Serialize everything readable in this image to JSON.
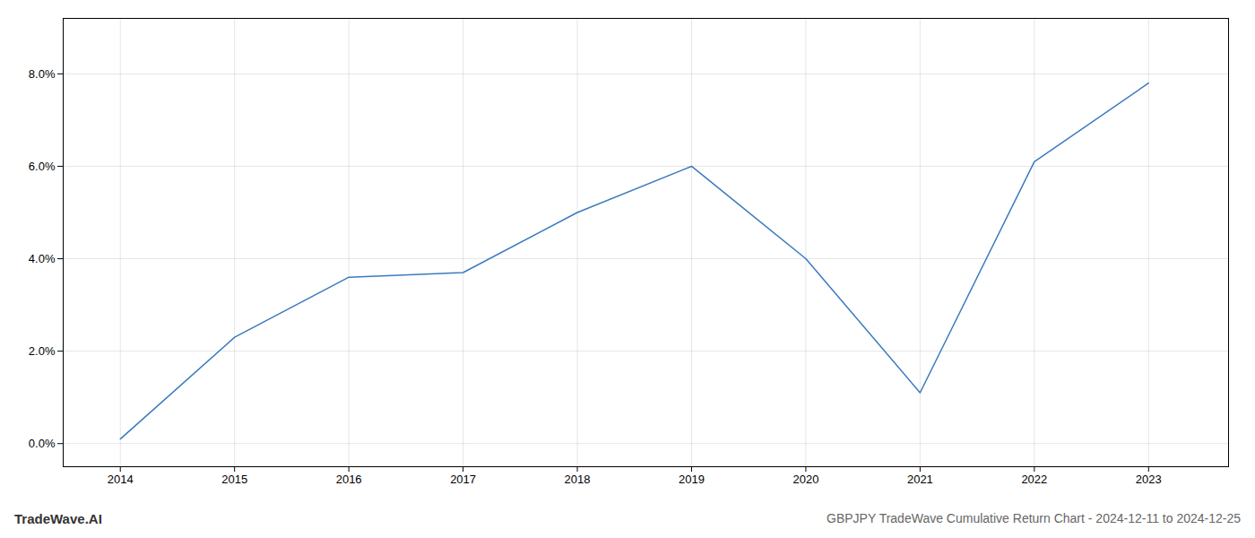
{
  "chart_data": {
    "type": "line",
    "title": "GBPJPY TradeWave Cumulative Return Chart - 2024-12-11 to 2024-12-25",
    "annotations": [
      "TradeWave.AI"
    ],
    "x": [
      2014,
      2015,
      2016,
      2017,
      2018,
      2019,
      2020,
      2021,
      2022,
      2023
    ],
    "values": [
      0.001,
      0.023,
      0.036,
      0.037,
      0.05,
      0.06,
      0.04,
      0.011,
      0.061,
      0.078
    ],
    "color": "#3a7abf",
    "xlim": [
      2013.5,
      2023.7
    ],
    "xticks": [
      2014,
      2015,
      2016,
      2017,
      2018,
      2019,
      2020,
      2021,
      2022,
      2023
    ],
    "ylim": [
      -0.005,
      0.092
    ],
    "yticks": [
      {
        "value": 0.0,
        "label": "0.0%"
      },
      {
        "value": 0.02,
        "label": "2.0%"
      },
      {
        "value": 0.04,
        "label": "4.0%"
      },
      {
        "value": 0.06,
        "label": "6.0%"
      },
      {
        "value": 0.08,
        "label": "8.0%"
      }
    ],
    "grid": true
  }
}
